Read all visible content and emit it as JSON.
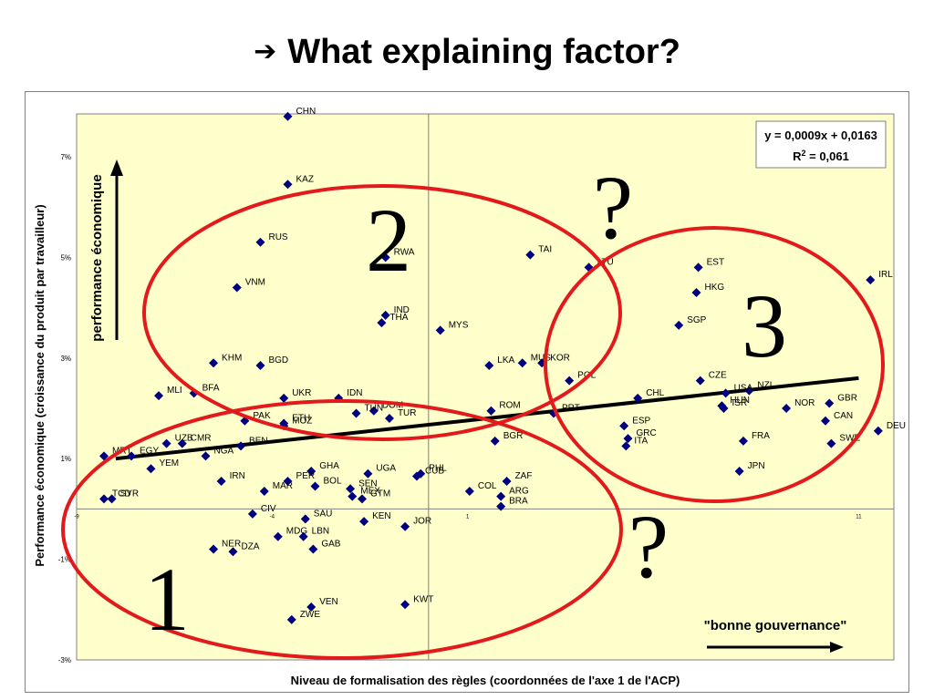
{
  "slide": {
    "title": "What explaining factor?",
    "title_arrow": "➔"
  },
  "colors": {
    "plot_bg": "#FFFFCC",
    "marker": "#000080",
    "ellipse": "#E31A1C",
    "trendline": "#000000"
  },
  "annotations": {
    "cluster_1": "1",
    "cluster_2": "2",
    "cluster_3": "3",
    "question_top": "?",
    "question_bottom": "?",
    "vertical_arrow_label": "performance économique",
    "horizontal_arrow_label": "\"bonne gouvernance\""
  },
  "chart_data": {
    "type": "scatter",
    "title": "",
    "xlabel": "Niveau de formalisation des règles (coordonnées de l'axe 1 de l'ACP)",
    "ylabel": "Performance économique (croissance du produit par travailleur)",
    "xlim": [
      -9,
      11.9
    ],
    "ylim": [
      -3.0,
      7.85
    ],
    "y_ticks": [
      {
        "value": 7,
        "label": "7%"
      },
      {
        "value": 5,
        "label": "5%"
      },
      {
        "value": 3,
        "label": "3%"
      },
      {
        "value": 1,
        "label": "1%"
      },
      {
        "value": -1,
        "label": "-1%"
      },
      {
        "value": -3,
        "label": "-3%"
      }
    ],
    "x_ticks": [
      {
        "value": -9,
        "label": "-9"
      },
      {
        "value": -4,
        "label": "-4"
      },
      {
        "value": 1,
        "label": "1"
      },
      {
        "value": 11,
        "label": "11"
      }
    ],
    "marker": "diamond",
    "trendline": {
      "equation": "y = 0,0009x + 0,0163",
      "r2_label": "R",
      "r2_sup": "2",
      "r2_value": " = 0,061",
      "x_range": [
        -8,
        11
      ],
      "y_values": [
        1.0,
        2.6
      ]
    },
    "points": [
      {
        "label": "CHN",
        "x": -3.6,
        "y": 7.8
      },
      {
        "label": "KAZ",
        "x": -3.6,
        "y": 6.45
      },
      {
        "label": "RUS",
        "x": -4.3,
        "y": 5.3
      },
      {
        "label": "VNM",
        "x": -4.9,
        "y": 4.4
      },
      {
        "label": "RWA",
        "x": -1.1,
        "y": 5.0
      },
      {
        "label": "IND",
        "x": -1.1,
        "y": 3.85
      },
      {
        "label": "THA",
        "x": -1.2,
        "y": 3.7
      },
      {
        "label": "MYS",
        "x": 0.3,
        "y": 3.55
      },
      {
        "label": "TAI",
        "x": 2.6,
        "y": 5.05
      },
      {
        "label": "LTU",
        "x": 4.1,
        "y": 4.8
      },
      {
        "label": "EST",
        "x": 6.9,
        "y": 4.8
      },
      {
        "label": "IRL",
        "x": 11.3,
        "y": 4.55
      },
      {
        "label": "HKG",
        "x": 6.85,
        "y": 4.3
      },
      {
        "label": "SGP",
        "x": 6.4,
        "y": 3.65
      },
      {
        "label": "MUS",
        "x": 2.4,
        "y": 2.9
      },
      {
        "label": "LKA",
        "x": 1.55,
        "y": 2.85
      },
      {
        "label": "KOR",
        "x": 2.9,
        "y": 2.9
      },
      {
        "label": "POL",
        "x": 3.6,
        "y": 2.55
      },
      {
        "label": "CZE",
        "x": 6.95,
        "y": 2.55
      },
      {
        "label": "USA",
        "x": 7.6,
        "y": 2.3
      },
      {
        "label": "NZL",
        "x": 8.2,
        "y": 2.35
      },
      {
        "label": "CHL",
        "x": 5.35,
        "y": 2.2
      },
      {
        "label": "HUN",
        "x": 7.5,
        "y": 2.05
      },
      {
        "label": "ISR",
        "x": 7.55,
        "y": 2.0
      },
      {
        "label": "NOR",
        "x": 9.15,
        "y": 2.0
      },
      {
        "label": "GBR",
        "x": 10.25,
        "y": 2.1
      },
      {
        "label": "CAN",
        "x": 10.15,
        "y": 1.75
      },
      {
        "label": "DEU",
        "x": 11.5,
        "y": 1.55
      },
      {
        "label": "SWE",
        "x": 10.3,
        "y": 1.3
      },
      {
        "label": "JPN",
        "x": 7.95,
        "y": 0.75
      },
      {
        "label": "FRA",
        "x": 8.05,
        "y": 1.35
      },
      {
        "label": "ESP",
        "x": 5.0,
        "y": 1.65
      },
      {
        "label": "GRC",
        "x": 5.1,
        "y": 1.4
      },
      {
        "label": "ITA",
        "x": 5.05,
        "y": 1.25
      },
      {
        "label": "PRT",
        "x": 3.2,
        "y": 1.9
      },
      {
        "label": "ROM",
        "x": 1.6,
        "y": 1.95
      },
      {
        "label": "BGR",
        "x": 1.7,
        "y": 1.35
      },
      {
        "label": "DOM",
        "x": -1.4,
        "y": 1.95
      },
      {
        "label": "TUR",
        "x": -1.0,
        "y": 1.8
      },
      {
        "label": "TUN",
        "x": -1.85,
        "y": 1.9
      },
      {
        "label": "IDN",
        "x": -2.3,
        "y": 2.2
      },
      {
        "label": "UKR",
        "x": -3.7,
        "y": 2.2
      },
      {
        "label": "ETH",
        "x": -3.7,
        "y": 1.7
      },
      {
        "label": "MOZ",
        "x": -3.7,
        "y": 1.65
      },
      {
        "label": "PAK",
        "x": -4.7,
        "y": 1.75
      },
      {
        "label": "BFA",
        "x": -6.0,
        "y": 2.3
      },
      {
        "label": "KHM",
        "x": -5.5,
        "y": 2.9
      },
      {
        "label": "BGD",
        "x": -4.3,
        "y": 2.85
      },
      {
        "label": "MLI",
        "x": -6.9,
        "y": 2.25
      },
      {
        "label": "EGY",
        "x": -7.6,
        "y": 1.05
      },
      {
        "label": "UZB",
        "x": -6.7,
        "y": 1.3
      },
      {
        "label": "CMR",
        "x": -6.3,
        "y": 1.3
      },
      {
        "label": "MRT",
        "x": -8.3,
        "y": 1.05
      },
      {
        "label": "BEN",
        "x": -4.8,
        "y": 1.25
      },
      {
        "label": "NGA",
        "x": -5.7,
        "y": 1.05
      },
      {
        "label": "YEM",
        "x": -7.1,
        "y": 0.8
      },
      {
        "label": "IRN",
        "x": -5.3,
        "y": 0.55
      },
      {
        "label": "MAR",
        "x": -4.2,
        "y": 0.35
      },
      {
        "label": "PER",
        "x": -3.6,
        "y": 0.55
      },
      {
        "label": "GHA",
        "x": -3.0,
        "y": 0.75
      },
      {
        "label": "BOL",
        "x": -2.9,
        "y": 0.45
      },
      {
        "label": "UGA",
        "x": -1.55,
        "y": 0.7
      },
      {
        "label": "SEN",
        "x": -2.0,
        "y": 0.4
      },
      {
        "label": "MEX",
        "x": -1.95,
        "y": 0.25
      },
      {
        "label": "GTM",
        "x": -1.7,
        "y": 0.2
      },
      {
        "label": "CUB",
        "x": -0.3,
        "y": 0.65
      },
      {
        "label": "PHL",
        "x": -0.2,
        "y": 0.7
      },
      {
        "label": "COL",
        "x": 1.05,
        "y": 0.35
      },
      {
        "label": "ZAF",
        "x": 2.0,
        "y": 0.55
      },
      {
        "label": "ARG",
        "x": 1.85,
        "y": 0.25
      },
      {
        "label": "BRA",
        "x": 1.85,
        "y": 0.05
      },
      {
        "label": "TCD",
        "x": -8.3,
        "y": 0.2
      },
      {
        "label": "SYR",
        "x": -8.1,
        "y": 0.2
      },
      {
        "label": "CIV",
        "x": -4.5,
        "y": -0.1
      },
      {
        "label": "SAU",
        "x": -3.15,
        "y": -0.2
      },
      {
        "label": "KEN",
        "x": -1.65,
        "y": -0.25
      },
      {
        "label": "JOR",
        "x": -0.6,
        "y": -0.35
      },
      {
        "label": "NER",
        "x": -5.5,
        "y": -0.8
      },
      {
        "label": "DZA",
        "x": -5.0,
        "y": -0.85
      },
      {
        "label": "MDG",
        "x": -3.85,
        "y": -0.55
      },
      {
        "label": "LBN",
        "x": -3.2,
        "y": -0.55
      },
      {
        "label": "GAB",
        "x": -2.95,
        "y": -0.8
      },
      {
        "label": "VEN",
        "x": -3.0,
        "y": -1.95
      },
      {
        "label": "KWT",
        "x": -0.6,
        "y": -1.9
      },
      {
        "label": "ZWE",
        "x": -3.5,
        "y": -2.2
      }
    ]
  }
}
